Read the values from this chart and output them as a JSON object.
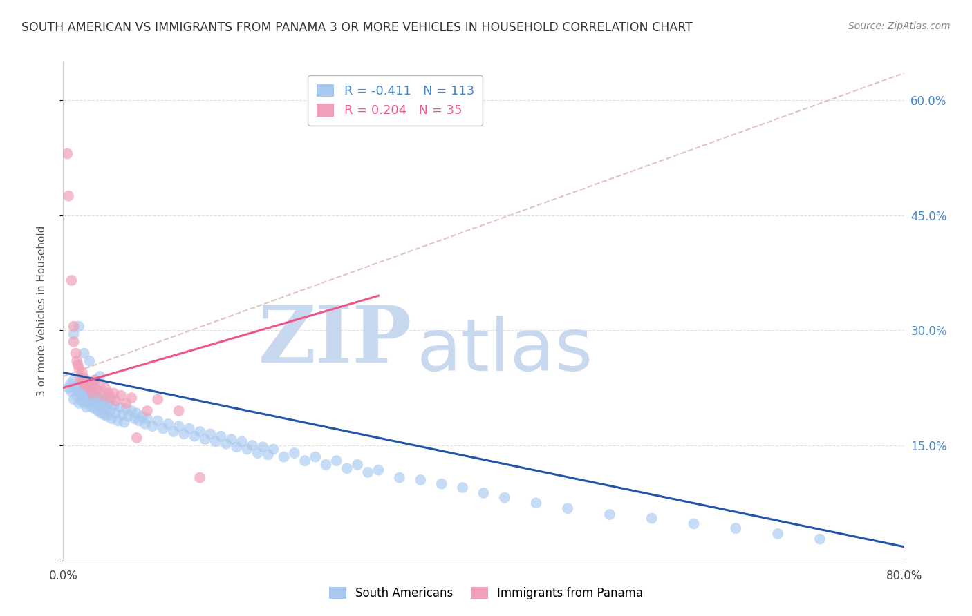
{
  "title": "SOUTH AMERICAN VS IMMIGRANTS FROM PANAMA 3 OR MORE VEHICLES IN HOUSEHOLD CORRELATION CHART",
  "source": "Source: ZipAtlas.com",
  "ylabel": "3 or more Vehicles in Household",
  "xlim": [
    0.0,
    0.8
  ],
  "ylim": [
    0.0,
    0.65
  ],
  "yticks": [
    0.0,
    0.15,
    0.3,
    0.45,
    0.6
  ],
  "ytick_labels_right": [
    "",
    "15.0%",
    "30.0%",
    "45.0%",
    "60.0%"
  ],
  "xtick_vals": [
    0.0,
    0.1,
    0.2,
    0.3,
    0.4,
    0.5,
    0.6,
    0.7,
    0.8
  ],
  "xtick_labels": [
    "0.0%",
    "",
    "",
    "",
    "",
    "",
    "",
    "",
    "80.0%"
  ],
  "legend_entry1": {
    "color": "#A8C8F0",
    "R": "-0.411",
    "N": "113",
    "label": "South Americans"
  },
  "legend_entry2": {
    "color": "#F0A0B8",
    "R": "0.204",
    "N": "35",
    "label": "Immigrants from Panama"
  },
  "watermark_zip": "ZIP",
  "watermark_atlas": "atlas",
  "watermark_color": "#C8D8EE",
  "background_color": "#FFFFFF",
  "grid_color": "#DDDDDD",
  "title_color": "#333333",
  "right_tick_color": "#4488CC",
  "blue_scatter_color": "#A8C8F0",
  "pink_scatter_color": "#F0A0B8",
  "blue_line_color": "#2255AA",
  "pink_line_color": "#EE5588",
  "dashed_line_color": "#DDB8B8",
  "blue_trend_x": [
    0.0,
    0.8
  ],
  "blue_trend_y": [
    0.245,
    0.018
  ],
  "pink_trend_x": [
    0.0,
    0.3
  ],
  "pink_trend_y": [
    0.225,
    0.345
  ],
  "dashed_trend_x": [
    0.0,
    0.8
  ],
  "dashed_trend_y": [
    0.24,
    0.635
  ],
  "blue_points_x": [
    0.005,
    0.007,
    0.008,
    0.01,
    0.01,
    0.012,
    0.013,
    0.014,
    0.015,
    0.015,
    0.017,
    0.018,
    0.019,
    0.02,
    0.02,
    0.021,
    0.022,
    0.022,
    0.023,
    0.024,
    0.025,
    0.025,
    0.026,
    0.027,
    0.027,
    0.028,
    0.029,
    0.03,
    0.03,
    0.031,
    0.032,
    0.033,
    0.034,
    0.035,
    0.036,
    0.037,
    0.038,
    0.039,
    0.04,
    0.041,
    0.042,
    0.043,
    0.045,
    0.046,
    0.048,
    0.05,
    0.052,
    0.054,
    0.056,
    0.058,
    0.06,
    0.062,
    0.065,
    0.068,
    0.07,
    0.072,
    0.075,
    0.078,
    0.08,
    0.085,
    0.09,
    0.095,
    0.1,
    0.105,
    0.11,
    0.115,
    0.12,
    0.125,
    0.13,
    0.135,
    0.14,
    0.145,
    0.15,
    0.155,
    0.16,
    0.165,
    0.17,
    0.175,
    0.18,
    0.185,
    0.19,
    0.195,
    0.2,
    0.21,
    0.22,
    0.23,
    0.24,
    0.25,
    0.26,
    0.27,
    0.28,
    0.29,
    0.3,
    0.32,
    0.34,
    0.36,
    0.38,
    0.4,
    0.42,
    0.45,
    0.48,
    0.52,
    0.56,
    0.6,
    0.64,
    0.68,
    0.72,
    0.01,
    0.015,
    0.02,
    0.025,
    0.03,
    0.035
  ],
  "blue_points_y": [
    0.225,
    0.23,
    0.22,
    0.235,
    0.21,
    0.225,
    0.215,
    0.22,
    0.205,
    0.23,
    0.218,
    0.208,
    0.225,
    0.215,
    0.205,
    0.222,
    0.212,
    0.2,
    0.218,
    0.208,
    0.215,
    0.205,
    0.22,
    0.21,
    0.2,
    0.218,
    0.208,
    0.225,
    0.198,
    0.215,
    0.205,
    0.195,
    0.212,
    0.202,
    0.192,
    0.21,
    0.2,
    0.19,
    0.208,
    0.198,
    0.188,
    0.205,
    0.195,
    0.185,
    0.202,
    0.192,
    0.182,
    0.2,
    0.19,
    0.18,
    0.198,
    0.188,
    0.195,
    0.185,
    0.192,
    0.182,
    0.188,
    0.178,
    0.185,
    0.175,
    0.182,
    0.172,
    0.178,
    0.168,
    0.175,
    0.165,
    0.172,
    0.162,
    0.168,
    0.158,
    0.165,
    0.155,
    0.162,
    0.152,
    0.158,
    0.148,
    0.155,
    0.145,
    0.15,
    0.14,
    0.148,
    0.138,
    0.145,
    0.135,
    0.14,
    0.13,
    0.135,
    0.125,
    0.13,
    0.12,
    0.125,
    0.115,
    0.118,
    0.108,
    0.105,
    0.1,
    0.095,
    0.088,
    0.082,
    0.075,
    0.068,
    0.06,
    0.055,
    0.048,
    0.042,
    0.035,
    0.028,
    0.295,
    0.305,
    0.27,
    0.26,
    0.235,
    0.24
  ],
  "pink_points_x": [
    0.004,
    0.005,
    0.008,
    0.01,
    0.01,
    0.012,
    0.013,
    0.014,
    0.015,
    0.016,
    0.018,
    0.019,
    0.02,
    0.022,
    0.023,
    0.025,
    0.027,
    0.028,
    0.03,
    0.032,
    0.035,
    0.038,
    0.04,
    0.043,
    0.045,
    0.048,
    0.05,
    0.055,
    0.06,
    0.065,
    0.07,
    0.08,
    0.09,
    0.11,
    0.13
  ],
  "pink_points_y": [
    0.53,
    0.475,
    0.365,
    0.305,
    0.285,
    0.27,
    0.26,
    0.255,
    0.25,
    0.238,
    0.245,
    0.232,
    0.238,
    0.228,
    0.232,
    0.225,
    0.228,
    0.218,
    0.235,
    0.222,
    0.228,
    0.215,
    0.225,
    0.218,
    0.212,
    0.218,
    0.208,
    0.215,
    0.205,
    0.212,
    0.16,
    0.195,
    0.21,
    0.195,
    0.108
  ]
}
